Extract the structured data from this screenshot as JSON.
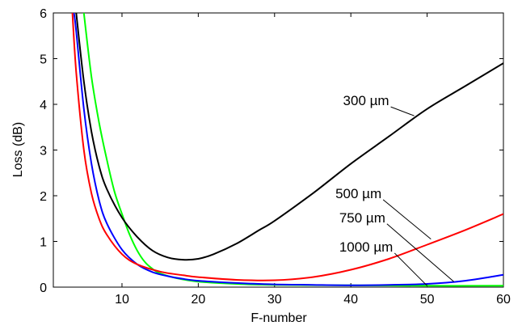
{
  "chart_data": {
    "type": "line",
    "title": "",
    "xlabel": "F-number",
    "ylabel": "Loss (dB)",
    "xlim": [
      1,
      60
    ],
    "ylim": [
      0,
      6
    ],
    "xticks": [
      10,
      20,
      30,
      40,
      50,
      60
    ],
    "yticks": [
      0,
      1,
      2,
      3,
      4,
      5,
      6
    ],
    "x_tick_labels": [
      "10",
      "20",
      "30",
      "40",
      "50",
      "60"
    ],
    "y_tick_labels": [
      "0",
      "1",
      "2",
      "3",
      "4",
      "5",
      "6"
    ],
    "grid": false,
    "series": [
      {
        "name": "300 µm",
        "color": "#000000",
        "x": [
          4.0,
          5.0,
          6.0,
          7.0,
          8.0,
          10.0,
          12.0,
          14.0,
          16.0,
          18.0,
          20.0,
          22.0,
          25.0,
          28.0,
          30.0,
          35.0,
          40.0,
          45.0,
          50.0,
          55.0,
          60.0
        ],
        "y": [
          6.0,
          4.5,
          3.4,
          2.65,
          2.15,
          1.52,
          1.1,
          0.8,
          0.65,
          0.6,
          0.62,
          0.72,
          0.95,
          1.25,
          1.45,
          2.05,
          2.7,
          3.3,
          3.9,
          4.4,
          4.9
        ]
      },
      {
        "name": "500 µm",
        "color": "#ff0000",
        "x": [
          3.5,
          4.0,
          5.0,
          6.0,
          7.0,
          8.0,
          10.0,
          12.0,
          15.0,
          18.0,
          20.0,
          25.0,
          30.0,
          35.0,
          40.0,
          45.0,
          50.0,
          55.0,
          60.0
        ],
        "y": [
          6.0,
          4.7,
          3.0,
          2.05,
          1.5,
          1.15,
          0.72,
          0.5,
          0.34,
          0.26,
          0.22,
          0.16,
          0.15,
          0.22,
          0.38,
          0.62,
          0.93,
          1.25,
          1.6
        ]
      },
      {
        "name": "750 µm",
        "color": "#0000ff",
        "x": [
          3.7,
          4.0,
          5.0,
          6.0,
          7.0,
          8.0,
          10.0,
          12.0,
          14.0,
          16.0,
          18.0,
          20.0,
          25.0,
          30.0,
          35.0,
          40.0,
          45.0,
          50.0,
          55.0,
          60.0
        ],
        "y": [
          6.0,
          5.6,
          3.9,
          2.7,
          1.9,
          1.4,
          0.82,
          0.5,
          0.33,
          0.24,
          0.18,
          0.14,
          0.09,
          0.06,
          0.05,
          0.04,
          0.05,
          0.07,
          0.14,
          0.27
        ]
      },
      {
        "name": "1000 µm",
        "color": "#00ff00",
        "x": [
          5.0,
          6.0,
          7.0,
          8.0,
          9.0,
          10.0,
          11.0,
          12.0,
          13.0,
          14.0,
          15.0,
          17.0,
          20.0,
          25.0,
          30.0,
          40.0,
          50.0,
          60.0
        ],
        "y": [
          6.0,
          4.6,
          3.6,
          2.8,
          2.1,
          1.6,
          1.15,
          0.8,
          0.55,
          0.4,
          0.3,
          0.2,
          0.12,
          0.07,
          0.05,
          0.04,
          0.03,
          0.03
        ]
      }
    ],
    "annotations": [
      {
        "text": "300 µm",
        "series": "300 µm",
        "target": [
          48.3,
          3.75
        ],
        "label_at": [
          42.0,
          3.98
        ]
      },
      {
        "text": "500 µm",
        "series": "500 µm",
        "target": [
          50.5,
          1.05
        ],
        "label_at": [
          41.0,
          1.95
        ]
      },
      {
        "text": "750 µm",
        "series": "750 µm",
        "target": [
          53.5,
          0.12
        ],
        "label_at": [
          41.5,
          1.42
        ]
      },
      {
        "text": "1000 µm",
        "series": "1000 µm",
        "target": [
          50.0,
          0.03
        ],
        "label_at": [
          42.0,
          0.78
        ]
      }
    ]
  }
}
